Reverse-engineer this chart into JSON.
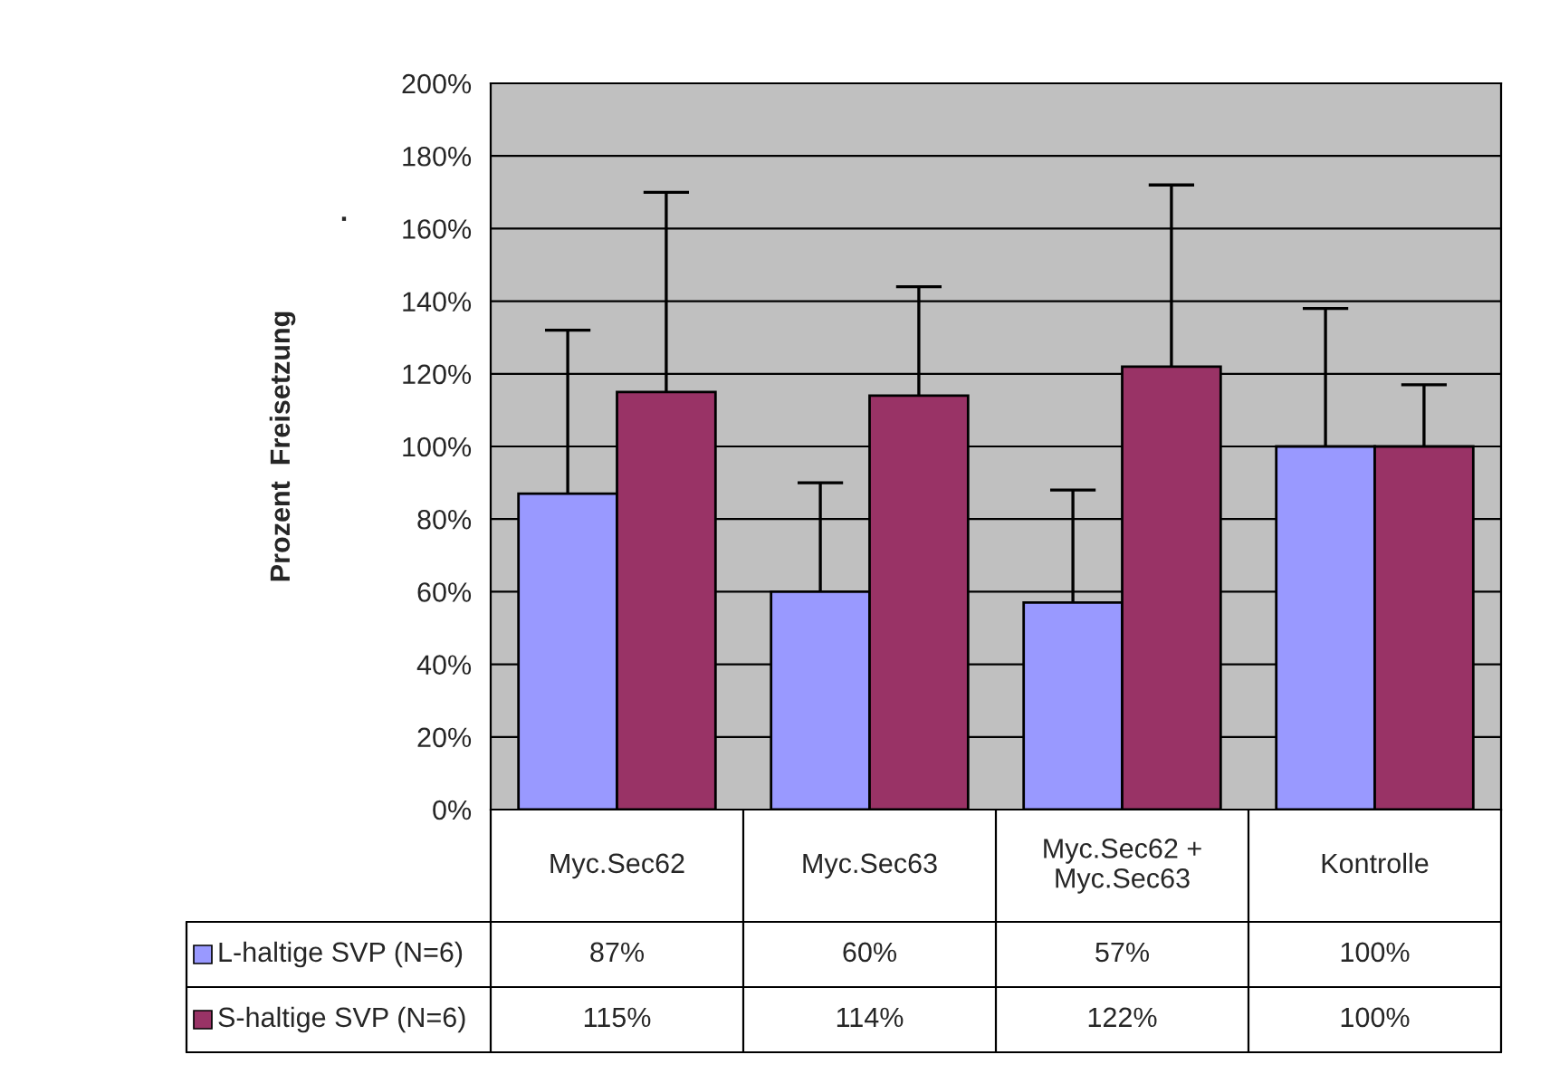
{
  "chart_data": {
    "type": "bar",
    "ylabel": "Prozent  Freisetzung",
    "categories": [
      "Myc.Sec62",
      "Myc.Sec63",
      "Myc.Sec62 + Myc.Sec63",
      "Kontrolle"
    ],
    "series": [
      {
        "name": "L-haltige SVP (N=6)",
        "color": "#9999ff",
        "values": [
          87,
          60,
          57,
          100
        ],
        "errors": [
          [
            87,
            132
          ],
          [
            60,
            90
          ],
          [
            57,
            88
          ],
          [
            100,
            138
          ]
        ],
        "value_labels": [
          "87%",
          "60%",
          "57%",
          "100%"
        ]
      },
      {
        "name": "S-haltige SVP (N=6)",
        "color": "#993366",
        "values": [
          115,
          114,
          122,
          100
        ],
        "errors": [
          [
            115,
            170
          ],
          [
            114,
            144
          ],
          [
            122,
            172
          ],
          [
            100,
            117
          ]
        ],
        "value_labels": [
          "115%",
          "114%",
          "122%",
          "100%"
        ]
      }
    ],
    "ylim": [
      0,
      200
    ],
    "yticks": [
      {
        "value": 0,
        "label": "0%"
      },
      {
        "value": 20,
        "label": "20%"
      },
      {
        "value": 40,
        "label": "40%"
      },
      {
        "value": 60,
        "label": "60%"
      },
      {
        "value": 80,
        "label": "80%"
      },
      {
        "value": 100,
        "label": "100%"
      },
      {
        "value": 120,
        "label": "120%"
      },
      {
        "value": 140,
        "label": "140%"
      },
      {
        "value": 160,
        "label": "160%"
      },
      {
        "value": 180,
        "label": "180%"
      },
      {
        "value": 200,
        "label": "200%"
      }
    ],
    "annotations": [
      "."
    ],
    "grid": "y",
    "legend": "bottom"
  }
}
